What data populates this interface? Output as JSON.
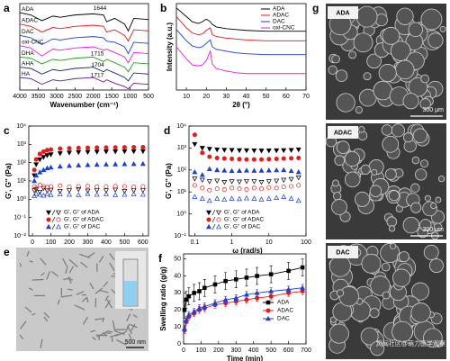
{
  "chart_data": [
    {
      "type": "line",
      "panel": "a",
      "xlabel": "Wavenumber (cm⁻¹)",
      "legend": "inline",
      "xlim": [
        4000,
        500
      ],
      "ylim": [
        0,
        7.6
      ],
      "xticks": [
        4000,
        3500,
        3000,
        2500,
        2000,
        1500,
        1000,
        500
      ],
      "x": [
        4000,
        3700,
        3400,
        3100,
        2900,
        2500,
        2000,
        1720,
        1640,
        1420,
        1150,
        1050,
        900,
        500
      ],
      "series": [
        {
          "name": "ADA",
          "color": "#000000",
          "values": [
            6.8,
            6.6,
            6.1,
            6.5,
            6.4,
            6.6,
            6.7,
            6.6,
            6.0,
            6.3,
            5.8,
            5.2,
            6.3,
            6.2
          ]
        },
        {
          "name": "ADAC",
          "color": "#e41a1c",
          "values": [
            5.8,
            5.6,
            5.1,
            5.5,
            5.4,
            5.6,
            5.7,
            5.6,
            5.1,
            5.3,
            4.8,
            4.3,
            5.3,
            5.2
          ]
        },
        {
          "name": "DAC",
          "color": "#1f3fcf",
          "values": [
            4.8,
            4.6,
            4.0,
            4.5,
            4.4,
            4.6,
            4.7,
            4.6,
            4.3,
            4.2,
            3.8,
            3.2,
            4.2,
            4.1
          ]
        },
        {
          "name": "oxi-CNC",
          "color": "#e020e0",
          "values": [
            3.9,
            3.7,
            3.0,
            3.6,
            3.5,
            3.7,
            3.8,
            3.5,
            3.6,
            3.3,
            2.9,
            2.4,
            3.3,
            3.2
          ]
        },
        {
          "name": "DHA",
          "color": "#20a020",
          "values": [
            2.9,
            2.8,
            2.3,
            2.7,
            2.6,
            2.8,
            2.9,
            2.5,
            2.7,
            2.4,
            2.0,
            1.6,
            2.4,
            2.3
          ]
        },
        {
          "name": "AHA",
          "color": "#1a237e",
          "values": [
            2.0,
            1.9,
            1.4,
            1.8,
            1.7,
            1.9,
            2.0,
            1.6,
            1.8,
            1.5,
            1.1,
            0.8,
            1.5,
            1.4
          ]
        },
        {
          "name": "HA",
          "color": "#6a1b9a",
          "values": [
            1.1,
            1.0,
            0.5,
            0.9,
            0.8,
            1.0,
            1.1,
            0.7,
            0.9,
            0.6,
            0.3,
            0.1,
            0.6,
            0.5
          ]
        }
      ],
      "annotations": [
        {
          "text": "1644",
          "x": 1644,
          "y": 7.2
        },
        {
          "text": "1715",
          "x": 1715,
          "y": 3.2
        },
        {
          "text": "1704",
          "x": 1704,
          "y": 2.2
        },
        {
          "text": "1717",
          "x": 1717,
          "y": 1.3
        }
      ]
    },
    {
      "type": "line",
      "panel": "b",
      "xlabel": "2θ (°)",
      "ylabel": "Intensity (a.u.)",
      "legend": "upper right",
      "xlim": [
        5,
        70
      ],
      "ylim": [
        0,
        10
      ],
      "xticks": [
        10,
        20,
        30,
        40,
        50,
        60,
        70
      ],
      "x": [
        5,
        10,
        13,
        16,
        18,
        20,
        22,
        23,
        25,
        30,
        35,
        40,
        50,
        60,
        70
      ],
      "series": [
        {
          "name": "ADA",
          "color": "#000000",
          "values": [
            9.5,
            8.5,
            7.9,
            7.7,
            7.9,
            8.2,
            7.9,
            7.6,
            7.3,
            7.1,
            7.0,
            6.9,
            6.8,
            6.8,
            6.8
          ]
        },
        {
          "name": "ADAC",
          "color": "#e41a1c",
          "values": [
            8.5,
            7.2,
            6.6,
            6.4,
            6.5,
            6.9,
            7.2,
            6.4,
            6.2,
            6.0,
            5.9,
            5.8,
            5.7,
            5.7,
            5.7
          ]
        },
        {
          "name": "DAC",
          "color": "#1f3fcf",
          "values": [
            7.0,
            5.7,
            5.1,
            4.9,
            5.0,
            5.4,
            5.8,
            5.0,
            4.7,
            4.5,
            4.3,
            4.2,
            4.1,
            4.1,
            4.1
          ]
        },
        {
          "name": "oxi-CNC",
          "color": "#e020e0",
          "values": [
            5.0,
            3.6,
            2.9,
            2.8,
            2.9,
            3.4,
            4.5,
            3.0,
            2.5,
            2.2,
            2.0,
            1.9,
            1.9,
            1.9,
            1.9
          ]
        }
      ]
    },
    {
      "type": "scatter",
      "panel": "c",
      "xlabel": "Time (s)",
      "ylabel": "G', G'' (Pa)",
      "legend": "lower center",
      "ylog": true,
      "xlim": [
        -20,
        630
      ],
      "ylim": [
        0.01,
        10000
      ],
      "xticks": [
        0,
        100,
        200,
        300,
        400,
        500,
        600
      ],
      "yticks": [
        {
          "value": 0.01,
          "label": "10⁻²"
        },
        {
          "value": 0.1,
          "label": "10⁻¹"
        },
        {
          "value": 1,
          "label": "10⁰"
        },
        {
          "value": 10,
          "label": "10¹"
        },
        {
          "value": 100,
          "label": "10²"
        },
        {
          "value": 1000,
          "label": "10³"
        },
        {
          "value": 10000,
          "label": "10⁴"
        }
      ],
      "x": [
        10,
        20,
        40,
        60,
        80,
        100,
        150,
        200,
        250,
        300,
        350,
        400,
        450,
        500,
        550,
        600
      ],
      "series": [
        {
          "name": "G', G'' of ADA",
          "color": "#000000",
          "marker": "triangle-down",
          "values": [
            20,
            80,
            150,
            200,
            250,
            280,
            320,
            350,
            370,
            380,
            390,
            400,
            405,
            410,
            415,
            420
          ],
          "values2": [
            3,
            3.5,
            2.5,
            4,
            3,
            3.2,
            2.8,
            3,
            3.5,
            2.9,
            3.1,
            3,
            3.3,
            2.8,
            3,
            3.1
          ]
        },
        {
          "name": "G', G'' of ADAC",
          "color": "#e41a1c",
          "marker": "circle",
          "values": [
            40,
            150,
            300,
            400,
            480,
            520,
            580,
            610,
            630,
            650,
            660,
            670,
            680,
            690,
            695,
            700
          ],
          "values2": [
            5,
            4,
            6,
            5,
            4.5,
            5,
            5.5,
            4.8,
            5,
            5.2,
            4.9,
            5,
            5.1,
            5,
            4.8,
            5
          ]
        },
        {
          "name": "G', G'' of DAC",
          "color": "#1f3fcf",
          "marker": "triangle-up",
          "values": [
            10,
            20,
            30,
            40,
            50,
            55,
            62,
            68,
            72,
            75,
            78,
            80,
            82,
            84,
            85,
            86
          ],
          "values2": [
            1.5,
            2,
            1.8,
            1.6,
            2,
            1.7,
            1.9,
            1.8,
            1.7,
            2,
            1.8,
            1.9,
            1.7,
            1.8,
            1.9,
            1.8
          ]
        }
      ]
    },
    {
      "type": "scatter",
      "panel": "d",
      "xlabel": "ω (rad/s)",
      "ylabel": "G', G'' (Pa)",
      "legend": "lower center",
      "ylog": true,
      "xlog": true,
      "xlim": [
        0.07,
        100
      ],
      "ylim": [
        0.1,
        10000
      ],
      "xticks": [
        0.1,
        1,
        10,
        100
      ],
      "yticks": [
        {
          "value": 0.1,
          "label": "10⁻¹"
        },
        {
          "value": 1,
          "label": "10⁰"
        },
        {
          "value": 10,
          "label": "10¹"
        },
        {
          "value": 100,
          "label": "10²"
        },
        {
          "value": 1000,
          "label": "10³"
        },
        {
          "value": 10000,
          "label": "10⁴"
        }
      ],
      "x": [
        0.1,
        0.16,
        0.25,
        0.4,
        0.63,
        1,
        1.6,
        2.5,
        4,
        6.3,
        10,
        16,
        25,
        40,
        63
      ],
      "series": [
        {
          "name": "G', G'' of ADA",
          "color": "#000000",
          "marker": "triangle-down",
          "values": [
            1500,
            1000,
            900,
            850,
            820,
            800,
            780,
            770,
            760,
            750,
            760,
            770,
            780,
            800,
            850
          ],
          "values2": [
            40,
            35,
            30,
            32,
            28,
            30,
            29,
            31,
            30,
            28,
            30,
            32,
            35,
            38,
            45
          ]
        },
        {
          "name": "G', G'' of ADAC",
          "color": "#e41a1c",
          "marker": "circle",
          "values": [
            4000,
            600,
            400,
            350,
            330,
            320,
            310,
            300,
            300,
            300,
            310,
            320,
            330,
            340,
            350
          ],
          "values2": [
            20,
            15,
            12,
            14,
            13,
            15,
            14,
            13,
            15,
            14,
            16,
            15,
            17,
            18,
            20
          ]
        },
        {
          "name": "G', G'' of DAC",
          "color": "#1f3fcf",
          "marker": "triangle-up",
          "values": [
            80,
            60,
            110,
            100,
            95,
            90,
            92,
            95,
            93,
            94,
            96,
            98,
            100,
            90,
            80
          ],
          "values2": [
            6,
            5,
            4,
            5,
            4.5,
            5,
            4.8,
            5.2,
            5,
            4.6,
            5,
            5.4,
            6,
            5,
            4
          ]
        }
      ]
    },
    {
      "type": "line",
      "panel": "f",
      "xlabel": "Time (min)",
      "ylabel": "Swelling ratio (g/g)",
      "legend": "right",
      "xlim": [
        0,
        700
      ],
      "ylim": [
        0,
        53
      ],
      "xticks": [
        0,
        100,
        200,
        300,
        400,
        500,
        600,
        700
      ],
      "yticks": [
        0,
        10,
        20,
        30,
        40,
        50
      ],
      "x": [
        5,
        15,
        30,
        60,
        90,
        120,
        180,
        240,
        300,
        360,
        420,
        500,
        600,
        680
      ],
      "series": [
        {
          "name": "ADA",
          "color": "#000000",
          "marker": "square",
          "values": [
            20,
            26,
            28,
            30,
            31,
            33,
            35,
            37,
            38,
            39,
            40,
            41,
            43,
            45
          ],
          "errors": [
            5,
            5,
            5,
            5,
            5,
            5,
            5,
            5,
            5,
            5,
            5,
            5,
            5,
            5
          ]
        },
        {
          "name": "ADAC",
          "color": "#e41a1c",
          "marker": "circle",
          "values": [
            8,
            13,
            16,
            18,
            20,
            21,
            23,
            24,
            25,
            26,
            27,
            28,
            30,
            31
          ],
          "errors": [
            2,
            2,
            2,
            2,
            2,
            2,
            2,
            2,
            2,
            2,
            2,
            2,
            2,
            2
          ]
        },
        {
          "name": "DAC",
          "color": "#1f3fcf",
          "marker": "triangle-up",
          "values": [
            9,
            14,
            17,
            19,
            21,
            22,
            24,
            26,
            27,
            29,
            30,
            31,
            32,
            33
          ],
          "errors": [
            2,
            2,
            2,
            2,
            2,
            2,
            2,
            2,
            2,
            2,
            2,
            2,
            2,
            2
          ]
        }
      ]
    }
  ],
  "images": [
    {
      "panel": "e",
      "scale": "500 nm"
    },
    {
      "panel": "g",
      "items": [
        {
          "label": "ADA",
          "scale": "300 μm"
        },
        {
          "label": "ADAC",
          "scale": "300 μm"
        },
        {
          "label": "DAC"
        }
      ]
    }
  ],
  "watermark": "风闻社区@萌力医学观察"
}
